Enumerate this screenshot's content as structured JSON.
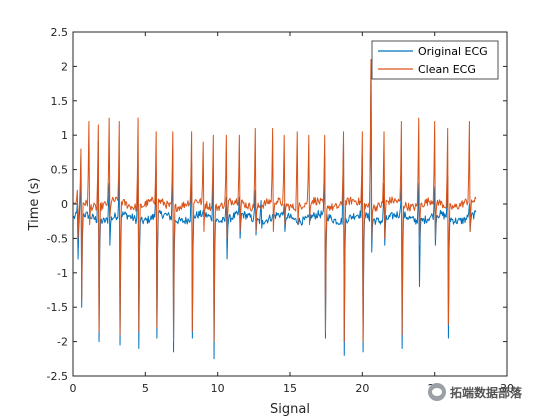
{
  "chart_data": {
    "type": "line",
    "title": "",
    "xlabel": "Signal",
    "ylabel": "Time (s)",
    "xlim": [
      0,
      30
    ],
    "ylim": [
      -2.5,
      2.5
    ],
    "x_ticks": [
      "0",
      "5",
      "10",
      "15",
      "20",
      "25",
      "30"
    ],
    "y_ticks": [
      "-2.5",
      "-2",
      "-1.5",
      "-1",
      "-0.5",
      "0",
      "0.5",
      "1",
      "1.5",
      "2",
      "2.5"
    ],
    "grid": false,
    "legend_position": "top-right",
    "x_range": [
      0.05,
      27.85
    ],
    "sample_step": 0.05,
    "sample_count": 557,
    "series": [
      {
        "name": "Original ECG",
        "color": "#0072BD",
        "baseline": -0.2,
        "beats": [
          {
            "x": 0.3,
            "peak": 0.0,
            "trough": -0.8
          },
          {
            "x": 0.55,
            "peak": 0.7,
            "trough": -1.5
          },
          {
            "x": 1.75,
            "peak": 0.9,
            "trough": -2.0
          },
          {
            "x": 2.5,
            "peak": 0.3,
            "trough": -0.6
          },
          {
            "x": 3.2,
            "peak": 0.5,
            "trough": -2.05
          },
          {
            "x": 4.5,
            "peak": 0.6,
            "trough": -2.1
          },
          {
            "x": 5.75,
            "peak": 0.5,
            "trough": -1.95
          },
          {
            "x": 6.9,
            "peak": 0.8,
            "trough": -2.15
          },
          {
            "x": 8.2,
            "peak": 0.6,
            "trough": -1.95
          },
          {
            "x": 9.7,
            "peak": 0.5,
            "trough": -2.25
          },
          {
            "x": 10.6,
            "peak": 0.1,
            "trough": -0.8
          },
          {
            "x": 11.5,
            "peak": 0.1,
            "trough": -0.5
          },
          {
            "x": 12.6,
            "peak": 0.2,
            "trough": -0.45
          },
          {
            "x": 13.0,
            "peak": 0.05,
            "trough": -0.35
          },
          {
            "x": 14.6,
            "peak": 0.0,
            "trough": -0.4
          },
          {
            "x": 17.4,
            "peak": 0.7,
            "trough": -1.95
          },
          {
            "x": 18.7,
            "peak": 0.9,
            "trough": -2.2
          },
          {
            "x": 20.0,
            "peak": 0.7,
            "trough": -2.15
          },
          {
            "x": 20.6,
            "peak": 2.1,
            "trough": -0.7
          },
          {
            "x": 21.5,
            "peak": 0.3,
            "trough": -0.6
          },
          {
            "x": 22.7,
            "peak": 0.3,
            "trough": -2.1
          },
          {
            "x": 23.9,
            "peak": 0.3,
            "trough": -1.2
          },
          {
            "x": 25.0,
            "peak": 0.25,
            "trough": -0.6
          },
          {
            "x": 25.9,
            "peak": 0.4,
            "trough": -1.95
          },
          {
            "x": 27.4,
            "peak": 0.0,
            "trough": -0.4
          }
        ]
      },
      {
        "name": "Clean ECG",
        "color": "#D95319",
        "baseline": 0.0,
        "beats": [
          {
            "x": 0.3,
            "peak": 0.2,
            "trough": -0.5
          },
          {
            "x": 0.55,
            "peak": 0.8,
            "trough": -1.4
          },
          {
            "x": 1.1,
            "peak": 1.2,
            "trough": -0.3
          },
          {
            "x": 1.75,
            "peak": 1.15,
            "trough": -1.85
          },
          {
            "x": 2.5,
            "peak": 1.25,
            "trough": -0.2
          },
          {
            "x": 3.2,
            "peak": 1.2,
            "trough": -1.9
          },
          {
            "x": 4.5,
            "peak": 1.25,
            "trough": -1.85
          },
          {
            "x": 5.75,
            "peak": 1.05,
            "trough": -1.8
          },
          {
            "x": 6.9,
            "peak": 1.05,
            "trough": -2.0
          },
          {
            "x": 8.2,
            "peak": 1.05,
            "trough": -1.85
          },
          {
            "x": 9.0,
            "peak": 0.9,
            "trough": -0.4
          },
          {
            "x": 9.7,
            "peak": 1.0,
            "trough": -2.0
          },
          {
            "x": 10.6,
            "peak": 1.0,
            "trough": -0.5
          },
          {
            "x": 11.5,
            "peak": 1.0,
            "trough": -0.4
          },
          {
            "x": 12.6,
            "peak": 1.1,
            "trough": -0.4
          },
          {
            "x": 13.8,
            "peak": 1.1,
            "trough": -0.4
          },
          {
            "x": 14.6,
            "peak": 1.0,
            "trough": -0.3
          },
          {
            "x": 15.5,
            "peak": 1.05,
            "trough": -0.3
          },
          {
            "x": 16.3,
            "peak": 1.0,
            "trough": -0.3
          },
          {
            "x": 17.4,
            "peak": 1.0,
            "trough": -1.85
          },
          {
            "x": 18.7,
            "peak": 1.05,
            "trough": -2.0
          },
          {
            "x": 20.0,
            "peak": 1.05,
            "trough": -2.0
          },
          {
            "x": 20.6,
            "peak": 2.1,
            "trough": -0.5
          },
          {
            "x": 21.5,
            "peak": 1.05,
            "trough": -0.5
          },
          {
            "x": 22.7,
            "peak": 1.2,
            "trough": -1.9
          },
          {
            "x": 23.9,
            "peak": 1.25,
            "trough": -0.6
          },
          {
            "x": 25.0,
            "peak": 1.2,
            "trough": -0.5
          },
          {
            "x": 25.9,
            "peak": 1.1,
            "trough": -1.75
          },
          {
            "x": 27.4,
            "peak": 1.2,
            "trough": -0.4
          }
        ]
      }
    ]
  },
  "watermark": {
    "icon": "wechat-icon",
    "text": "拓端数据部落"
  }
}
